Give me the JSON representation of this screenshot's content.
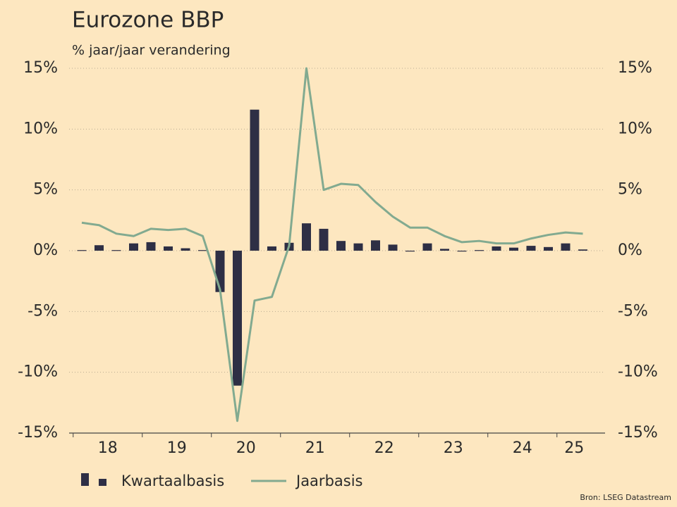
{
  "chart_data": {
    "type": "bar_line",
    "title": "Eurozone BBP",
    "subtitle": "% jaar/jaar verandering",
    "source": "Bron: LSEG Datastream",
    "categories": [
      null,
      null,
      null,
      null,
      null,
      null,
      null,
      null,
      null,
      null,
      null,
      null,
      null,
      null,
      null,
      null,
      null,
      null,
      null,
      null,
      null,
      null,
      null,
      null,
      null,
      null,
      null,
      null,
      null,
      null
    ],
    "year_labels": [
      "18",
      "19",
      "20",
      "21",
      "22",
      "23",
      "24",
      "25"
    ],
    "series": [
      {
        "name": "Kwartaalbasis",
        "kind": "bar",
        "color": "#2e2f45",
        "values": [
          0.05,
          0.45,
          0.05,
          0.6,
          0.7,
          0.35,
          0.2,
          0.05,
          -3.4,
          -11.1,
          11.6,
          0.35,
          0.65,
          2.25,
          1.8,
          0.8,
          0.6,
          0.85,
          0.5,
          -0.05,
          0.6,
          0.15,
          0,
          0.05,
          0.35,
          0.25,
          0.4,
          0.3,
          0.6,
          0.1
        ]
      },
      {
        "name": "Jaarbasis",
        "kind": "line",
        "axis": "y2",
        "color": "#82aa90",
        "values": [
          2.3,
          2.1,
          1.4,
          1.2,
          1.8,
          1.7,
          1.8,
          1.2,
          -3.2,
          -14.0,
          -4.1,
          -3.8,
          0.4,
          15.0,
          5.0,
          5.5,
          5.4,
          4.0,
          2.8,
          1.9,
          1.9,
          1.2,
          0.7,
          0.8,
          0.6,
          0.6,
          1.0,
          1.3,
          1.5,
          1.4
        ]
      }
    ],
    "ylim": [
      -15,
      15
    ],
    "yticks": [
      {
        "value": -15,
        "label": "-15%"
      },
      {
        "value": -10,
        "label": "-10%"
      },
      {
        "value": -5,
        "label": "-5%"
      },
      {
        "value": 0,
        "label": "0%"
      },
      {
        "value": 5,
        "label": "5%"
      },
      {
        "value": 10,
        "label": "10%"
      },
      {
        "value": 15,
        "label": "15%"
      }
    ],
    "y2lim": [
      -15,
      15
    ],
    "y2ticks": [
      {
        "value": -15,
        "label": "-15%"
      },
      {
        "value": -10,
        "label": "-10%"
      },
      {
        "value": -5,
        "label": "-5%"
      },
      {
        "value": 0,
        "label": "0%"
      },
      {
        "value": 5,
        "label": "5%"
      },
      {
        "value": 10,
        "label": "10%"
      },
      {
        "value": 15,
        "label": "15%"
      }
    ],
    "grid": true,
    "legend": "bottom-left"
  }
}
